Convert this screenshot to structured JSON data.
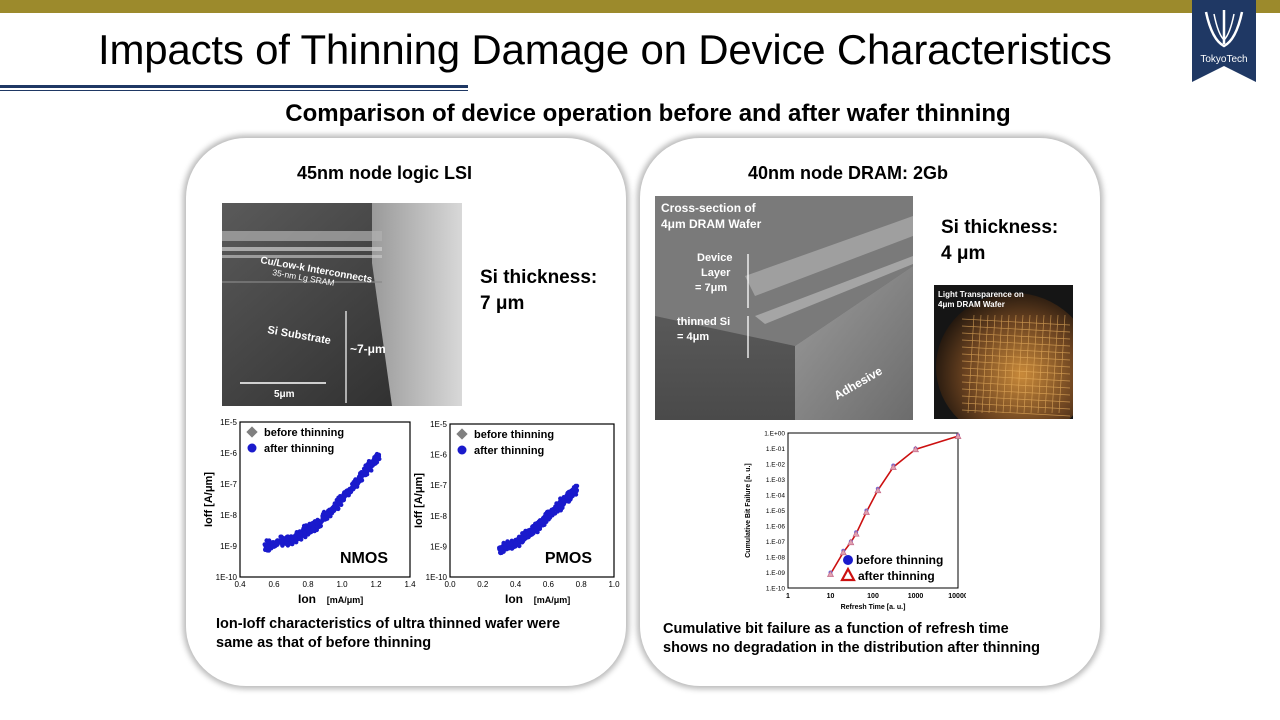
{
  "slide": {
    "title": "Impacts of Thinning Damage on Device Characteristics",
    "subtitle": "Comparison of device operation before and after wafer thinning",
    "logo_text": "TokyoTech"
  },
  "left": {
    "title": "45nm node logic LSI",
    "si_thickness_line1": "Si thickness:",
    "si_thickness_line2": "7 μm",
    "sem": {
      "label_interconnect": "Cu/Low-k Interconnects",
      "label_sram": "35-nm Lg SRAM",
      "label_substrate": "Si Substrate",
      "label_thickness": "~7-μm",
      "scale_label": "5μm"
    },
    "caption_line1": "Ion-Ioff characteristics of ultra thinned wafer were",
    "caption_line2": "same as that of before thinning"
  },
  "right": {
    "title": "40nm node DRAM: 2Gb",
    "si_thickness_line1": "Si thickness:",
    "si_thickness_line2": "4 μm",
    "sem": {
      "label_cross1": "Cross-section of",
      "label_cross2": "4μm DRAM Wafer",
      "label_device1": "Device",
      "label_device2": "Layer",
      "label_device3": "= 7μm",
      "label_thinned1": "thinned Si",
      "label_thinned2": "= 4μm",
      "label_adhesive": "Adhesive"
    },
    "wafer": {
      "label1": "Light Transparence on",
      "label2": "4μm DRAM Wafer"
    },
    "caption_line1": "Cumulative bit failure as a function of refresh time",
    "caption_line2": "shows no degradation in the distribution after thinning"
  },
  "chart_data": [
    {
      "type": "scatter",
      "label": "NMOS",
      "xlabel_main": "Ion",
      "xlabel_unit": "[mA/μm]",
      "ylabel": "Ioff [A/μm]",
      "xlim": [
        0.4,
        1.4
      ],
      "ylim_log": [
        -10,
        -5
      ],
      "xticks": [
        "0.4",
        "0.6",
        "0.8",
        "1.0",
        "1.2",
        "1.4"
      ],
      "yticks": [
        "1E-10",
        "1E-9",
        "1E-8",
        "1E-7",
        "1E-6",
        "1E-5"
      ],
      "log_scale_y": true,
      "legend_position": "top-left",
      "series": [
        {
          "name": "before thinning",
          "marker": "diamond",
          "color": "#808080",
          "trend": [
            [
              0.55,
              -9.0
            ],
            [
              0.7,
              -8.8
            ],
            [
              0.85,
              -8.3
            ],
            [
              0.95,
              -7.8
            ],
            [
              1.05,
              -7.2
            ],
            [
              1.15,
              -6.5
            ],
            [
              1.22,
              -6.1
            ]
          ]
        },
        {
          "name": "after thinning",
          "marker": "circle",
          "color": "#1a1acc",
          "trend": [
            [
              0.55,
              -9.0
            ],
            [
              0.7,
              -8.8
            ],
            [
              0.85,
              -8.3
            ],
            [
              0.95,
              -7.8
            ],
            [
              1.05,
              -7.2
            ],
            [
              1.15,
              -6.5
            ],
            [
              1.22,
              -6.1
            ]
          ]
        }
      ]
    },
    {
      "type": "scatter",
      "label": "PMOS",
      "xlabel_main": "Ion",
      "xlabel_unit": "[mA/μm]",
      "ylabel": "Ioff [A/μm]",
      "xlim": [
        0.0,
        1.0
      ],
      "ylim_log": [
        -10,
        -5
      ],
      "xticks": [
        "0.0",
        "0.2",
        "0.4",
        "0.6",
        "0.8",
        "1.0"
      ],
      "yticks": [
        "1E-10",
        "1E-9",
        "1E-8",
        "1E-7",
        "1E-6",
        "1E-5"
      ],
      "log_scale_y": true,
      "legend_position": "top-left",
      "series": [
        {
          "name": "before thinning",
          "marker": "diamond",
          "color": "#808080",
          "trend": [
            [
              0.3,
              -9.1
            ],
            [
              0.4,
              -8.9
            ],
            [
              0.5,
              -8.5
            ],
            [
              0.6,
              -8.0
            ],
            [
              0.7,
              -7.5
            ],
            [
              0.77,
              -7.1
            ]
          ]
        },
        {
          "name": "after thinning",
          "marker": "circle",
          "color": "#1a1acc",
          "trend": [
            [
              0.3,
              -9.1
            ],
            [
              0.4,
              -8.9
            ],
            [
              0.5,
              -8.5
            ],
            [
              0.6,
              -8.0
            ],
            [
              0.7,
              -7.5
            ],
            [
              0.77,
              -7.1
            ]
          ]
        }
      ]
    },
    {
      "type": "line",
      "xlabel": "Refresh Time [a. u.]",
      "ylabel": "Cumulative Bit Failure [a. u.]",
      "xlim_log": [
        0,
        4
      ],
      "ylim_log": [
        -10,
        0
      ],
      "xticks": [
        "1",
        "10",
        "100",
        "1000",
        "10000"
      ],
      "yticks": [
        "1.E-10",
        "1.E-09",
        "1.E-08",
        "1.E-07",
        "1.E-06",
        "1.E-05",
        "1.E-04",
        "1.E-03",
        "1.E-02",
        "1.E-01",
        "1.E+00"
      ],
      "log_scale_x": true,
      "log_scale_y": true,
      "legend_position": "bottom-right",
      "series": [
        {
          "name": "before thinning",
          "marker": "circle",
          "color": "#1a1acc",
          "points": [
            [
              10,
              -9.0
            ],
            [
              20,
              -7.6
            ],
            [
              30,
              -7.0
            ],
            [
              40,
              -6.4
            ],
            [
              70,
              -5.0
            ],
            [
              130,
              -3.6
            ],
            [
              300,
              -2.1
            ],
            [
              1000,
              -1.0
            ],
            [
              10000,
              -0.15
            ]
          ]
        },
        {
          "name": "after thinning",
          "marker": "triangle",
          "color": "#cc1010",
          "points": [
            [
              10,
              -9.1
            ],
            [
              20,
              -7.7
            ],
            [
              30,
              -7.05
            ],
            [
              40,
              -6.5
            ],
            [
              70,
              -5.1
            ],
            [
              130,
              -3.7
            ],
            [
              300,
              -2.2
            ],
            [
              1000,
              -1.05
            ],
            [
              10000,
              -0.2
            ]
          ]
        }
      ]
    }
  ]
}
